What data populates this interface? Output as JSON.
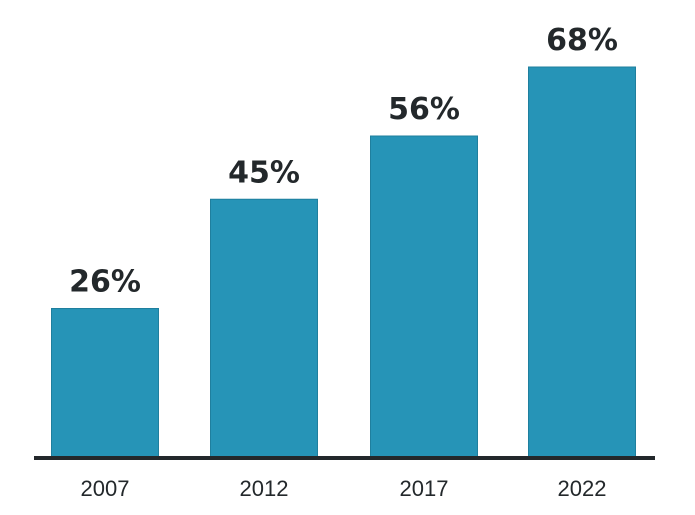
{
  "chart_data": {
    "type": "bar",
    "categories": [
      "2007",
      "2012",
      "2017",
      "2022"
    ],
    "values": [
      26,
      45,
      56,
      68
    ],
    "value_labels": [
      "26%",
      "45%",
      "56%",
      "68%"
    ],
    "title": "",
    "xlabel": "",
    "ylabel": "",
    "ylim": [
      0,
      75
    ],
    "grid": false,
    "legend": "none",
    "colors": {
      "bar": "#2694b7",
      "text": "#23282b",
      "axis": "#23282b",
      "background": "#ffffff"
    }
  }
}
